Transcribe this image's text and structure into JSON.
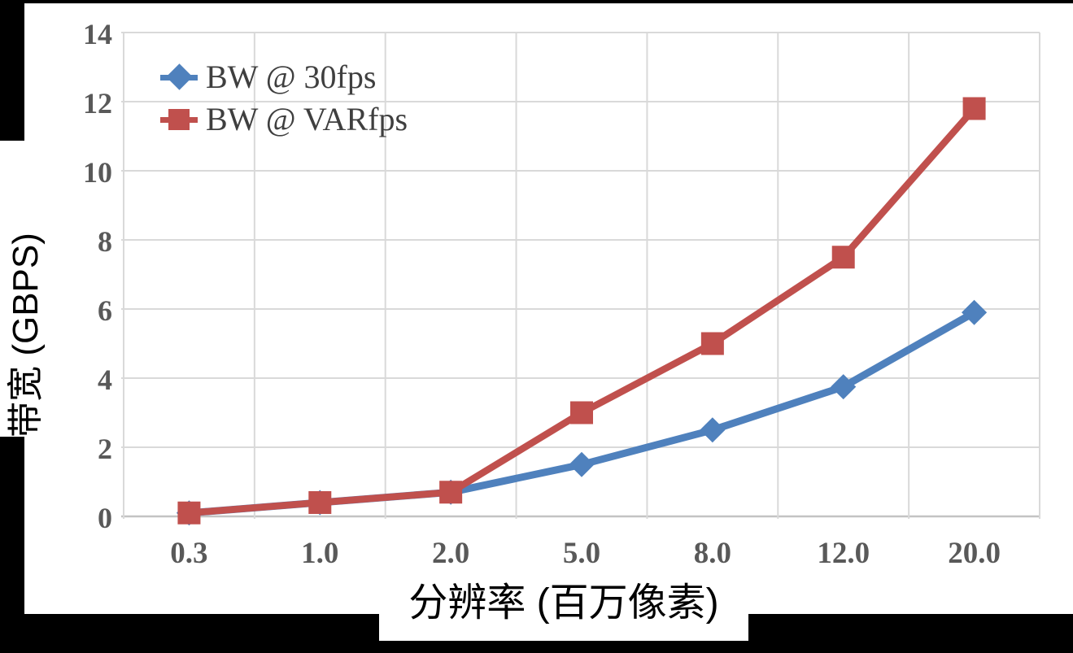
{
  "chart_data": {
    "type": "line",
    "title": "",
    "xlabel": "分辨率 (百万像素)",
    "ylabel": "带宽 (GBPS)",
    "categories": [
      "0.3",
      "1.0",
      "2.0",
      "5.0",
      "8.0",
      "12.0",
      "20.0"
    ],
    "y_ticks": [
      "0",
      "2",
      "4",
      "6",
      "8",
      "10",
      "12",
      "14"
    ],
    "ylim": [
      0,
      14
    ],
    "grid": true,
    "legend_position": "top-left inside plot area",
    "series": [
      {
        "name": "BW @ 30fps",
        "marker": "diamond",
        "color": "#4F81BD",
        "values": [
          0.1,
          0.4,
          0.7,
          1.5,
          2.5,
          3.75,
          5.9
        ]
      },
      {
        "name": "BW @ VARfps",
        "marker": "square",
        "color": "#C0504D",
        "values": [
          0.1,
          0.4,
          0.7,
          3.0,
          5.0,
          7.5,
          11.8
        ]
      }
    ],
    "colors": {
      "gridline": "#D9D9D9",
      "baseline": "#C3C3C3",
      "tick_label": "#595959",
      "legend_text": "#3F3F3F",
      "axis_title": "#000000",
      "chart_background": "#FFFFFF",
      "frame_background": "#000000"
    }
  }
}
